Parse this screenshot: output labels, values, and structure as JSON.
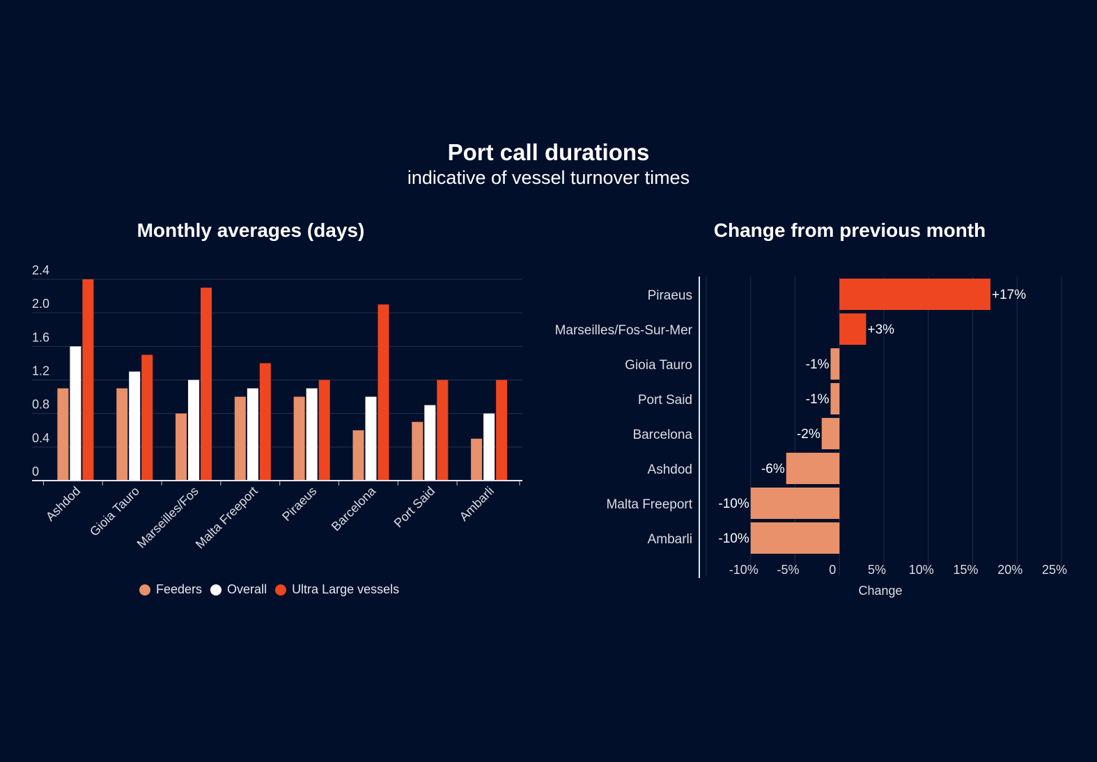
{
  "header": {
    "title": "Port call durations",
    "subtitle": "indicative of vessel turnover times"
  },
  "colors": {
    "background": "#020f2a",
    "feeders": "#e8916a",
    "overall": "#ffffff",
    "ultra_large": "#ee4621",
    "negative": "#e8916a",
    "positive": "#ee4621"
  },
  "chart_data": [
    {
      "type": "bar",
      "title": "Monthly averages (days)",
      "xlabel": "",
      "ylabel": "",
      "ylim": [
        0,
        2.4
      ],
      "yticks": [
        "0",
        "0.4",
        "0.8",
        "1.2",
        "1.6",
        "2.0",
        "2.4"
      ],
      "grid": true,
      "legend_position": "bottom",
      "categories": [
        "Ashdod",
        "Gioia Tauro",
        "Marseilles/Fos",
        "Malta Freeport",
        "Piraeus",
        "Barcelona",
        "Port Said",
        "Ambarli"
      ],
      "series": [
        {
          "name": "Feeders",
          "values": [
            1.1,
            1.1,
            0.8,
            1.0,
            1.0,
            0.6,
            0.7,
            0.5
          ]
        },
        {
          "name": "Overall",
          "values": [
            1.6,
            1.3,
            1.2,
            1.1,
            1.1,
            1.0,
            0.9,
            0.8
          ]
        },
        {
          "name": "Ultra Large vessels",
          "values": [
            2.4,
            1.5,
            2.3,
            1.4,
            1.2,
            2.1,
            1.2,
            1.2
          ]
        }
      ]
    },
    {
      "type": "bar",
      "orientation": "horizontal",
      "title": "Change from previous month",
      "xlabel": "Change",
      "ylabel": "",
      "xlim": [
        -15,
        25
      ],
      "xticks": [
        {
          "value": -10,
          "label": "-10%"
        },
        {
          "value": -5,
          "label": "-5%"
        },
        {
          "value": 0,
          "label": "0"
        },
        {
          "value": 5,
          "label": "5%"
        },
        {
          "value": 10,
          "label": "10%"
        },
        {
          "value": 15,
          "label": "15%"
        },
        {
          "value": 20,
          "label": "20%"
        },
        {
          "value": 25,
          "label": "25%"
        }
      ],
      "grid": true,
      "categories": [
        "Piraeus",
        "Marseilles/Fos-Sur-Mer",
        "Gioia Tauro",
        "Port Said",
        "Barcelona",
        "Ashdod",
        "Malta Freeport",
        "Ambarli"
      ],
      "values": [
        17,
        3,
        -1,
        -1,
        -2,
        -6,
        -10,
        -10
      ],
      "data_labels": [
        "+17%",
        "+3%",
        "-1%",
        "-1%",
        "-2%",
        "-6%",
        "-10%",
        "-10%"
      ]
    }
  ]
}
